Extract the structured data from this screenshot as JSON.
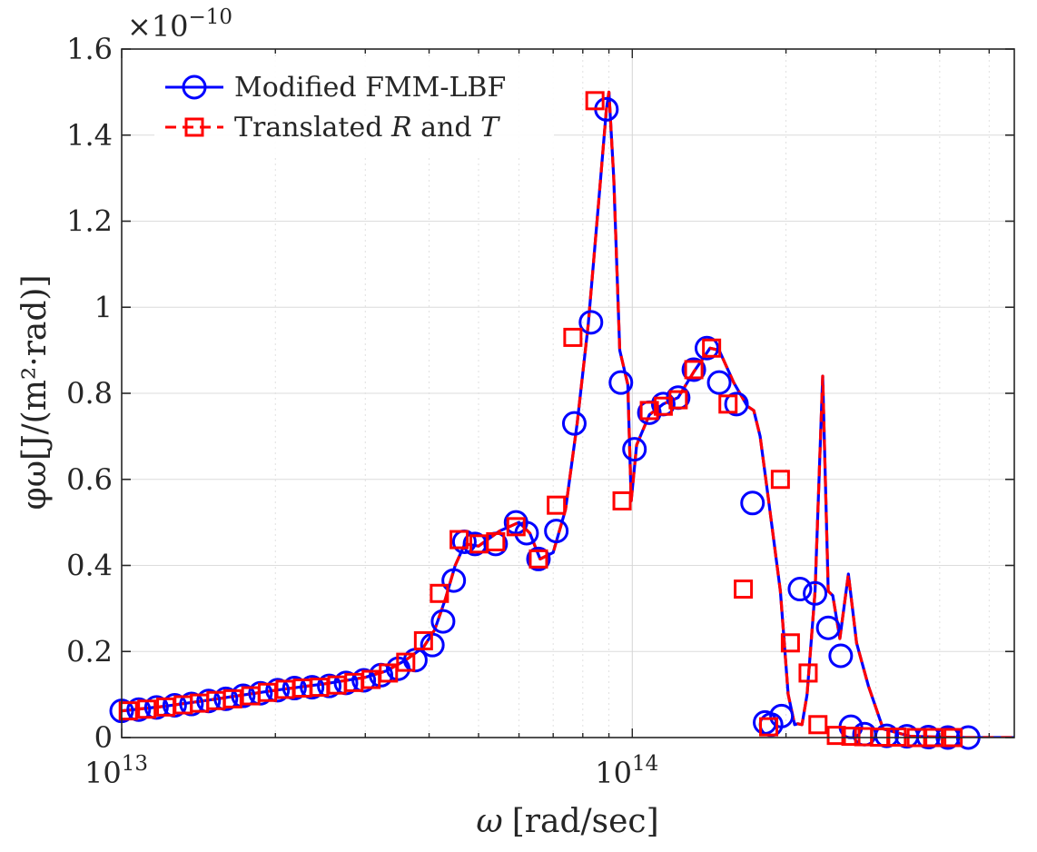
{
  "chart_data": {
    "type": "line",
    "xscale": "log",
    "xlim": [
      10000000000000.0,
      560000000000000.0
    ],
    "ylim": [
      0,
      1.6
    ],
    "y_multiplier": "×10",
    "y_multiplier_exponent": "−10",
    "xlabel_symbol": "ω",
    "xlabel_unit": "[rad/sec]",
    "ylabel": "φω[J/(m²·rad)]",
    "grid": true,
    "legend_position": "top-left",
    "x_ticks": [
      {
        "value": 10000000000000.0,
        "base": "10",
        "exp": "13"
      },
      {
        "value": 100000000000000.0,
        "base": "10",
        "exp": "14"
      }
    ],
    "y_ticks": [
      {
        "value": 0,
        "label": "0"
      },
      {
        "value": 0.2,
        "label": "0.2"
      },
      {
        "value": 0.4,
        "label": "0.4"
      },
      {
        "value": 0.6,
        "label": "0.6"
      },
      {
        "value": 0.8,
        "label": "0.8"
      },
      {
        "value": 1.0,
        "label": "1"
      },
      {
        "value": 1.2,
        "label": "1.2"
      },
      {
        "value": 1.4,
        "label": "1.4"
      },
      {
        "value": 1.6,
        "label": "1.6"
      }
    ],
    "curve": {
      "x": [
        10000000000000.0,
        12000000000000.0,
        15000000000000.0,
        20000000000000.0,
        25000000000000.0,
        30000000000000.0,
        33000000000000.0,
        36000000000000.0,
        39000000000000.0,
        41000000000000.0,
        43000000000000.0,
        45000000000000.0,
        47000000000000.0,
        50000000000000.0,
        55000000000000.0,
        60000000000000.0,
        63000000000000.0,
        66000000000000.0,
        70000000000000.0,
        74000000000000.0,
        78000000000000.0,
        82000000000000.0,
        86000000000000.0,
        89000000000000.0,
        90000000000000.0,
        92000000000000.0,
        94500000000000.0,
        98000000000000.0,
        99500000000000.0,
        102000000000000.0,
        108000000000000.0,
        115000000000000.0,
        123000000000000.0,
        132000000000000.0,
        142000000000000.0,
        148000000000000.0,
        158000000000000.0,
        168000000000000.0,
        173000000000000.0,
        178000000000000.0,
        185000000000000.0,
        195000000000000.0,
        202000000000000.0,
        208000000000000.0,
        211000000000000.0,
        215000000000000.0,
        220000000000000.0,
        228000000000000.0,
        236000000000000.0,
        242000000000000.0,
        247000000000000.0,
        255000000000000.0,
        265000000000000.0,
        275000000000000.0,
        290000000000000.0,
        310000000000000.0,
        350000000000000.0,
        400000000000000.0,
        450000000000000.0,
        520000000000000.0,
        560000000000000.0
      ],
      "y": [
        0.062,
        0.072,
        0.088,
        0.11,
        0.125,
        0.14,
        0.155,
        0.18,
        0.21,
        0.25,
        0.32,
        0.4,
        0.45,
        0.445,
        0.48,
        0.5,
        0.475,
        0.415,
        0.43,
        0.53,
        0.73,
        0.96,
        1.25,
        1.46,
        1.5,
        1.3,
        0.9,
        0.82,
        0.55,
        0.68,
        0.75,
        0.775,
        0.79,
        0.85,
        0.905,
        0.9,
        0.825,
        0.77,
        0.76,
        0.7,
        0.55,
        0.34,
        0.1,
        0.03,
        0.032,
        0.03,
        0.1,
        0.34,
        0.84,
        0.34,
        0.33,
        0.23,
        0.38,
        0.22,
        0.12,
        0.02,
        0.003,
        0.001,
        0.0,
        0.0,
        0.0
      ]
    },
    "series": [
      {
        "name": "Modified FMM-LBF",
        "color": "#0000ff",
        "marker": "circle",
        "line_style": "solid",
        "markers": {
          "x": [
            10000000000000.0,
            10800000000000.0,
            11700000000000.0,
            12700000000000.0,
            13700000000000.0,
            14800000000000.0,
            16000000000000.0,
            17300000000000.0,
            18700000000000.0,
            20200000000000.0,
            21800000000000.0,
            23600000000000.0,
            25500000000000.0,
            27500000000000.0,
            29800000000000.0,
            32200000000000.0,
            34800000000000.0,
            37600000000000.0,
            40600000000000.0,
            42600000000000.0,
            44700000000000.0,
            46900000000000.0,
            49200000000000.0,
            54000000000000.0,
            59200000000000.0,
            62100000000000.0,
            65500000000000.0,
            71000000000000.0,
            77000000000000.0,
            83000000000000.0,
            89000000000000.0,
            95000000000000.0,
            101000000000000.0,
            108000000000000.0,
            115000000000000.0,
            123000000000000.0,
            132000000000000.0,
            140000000000000.0,
            148000000000000.0,
            160000000000000.0,
            172000000000000.0,
            182000000000000.0,
            187000000000000.0,
            196000000000000.0,
            213000000000000.0,
            228000000000000.0,
            242000000000000.0,
            256000000000000.0,
            268000000000000.0,
            285000000000000.0,
            315000000000000.0,
            345000000000000.0,
            380000000000000.0,
            415000000000000.0,
            455000000000000.0
          ],
          "y": [
            0.062,
            0.065,
            0.07,
            0.075,
            0.078,
            0.085,
            0.09,
            0.097,
            0.103,
            0.11,
            0.115,
            0.117,
            0.12,
            0.127,
            0.133,
            0.145,
            0.16,
            0.18,
            0.215,
            0.27,
            0.365,
            0.455,
            0.45,
            0.45,
            0.5,
            0.475,
            0.415,
            0.48,
            0.73,
            0.965,
            1.46,
            0.825,
            0.67,
            0.755,
            0.775,
            0.79,
            0.855,
            0.905,
            0.825,
            0.775,
            0.545,
            0.035,
            0.03,
            0.05,
            0.345,
            0.335,
            0.255,
            0.19,
            0.025,
            0.008,
            0.004,
            0.003,
            0.001,
            0.0,
            0.0
          ]
        }
      },
      {
        "name": "Translated R and T",
        "color": "#ff0000",
        "marker": "square",
        "line_style": "dashed",
        "markers": {
          "x": [
            10300000000000.0,
            11200000000000.0,
            12200000000000.0,
            13200000000000.0,
            14200000000000.0,
            15300000000000.0,
            16500000000000.0,
            17900000000000.0,
            19300000000000.0,
            20900000000000.0,
            22600000000000.0,
            24400000000000.0,
            26400000000000.0,
            28500000000000.0,
            30800000000000.0,
            33300000000000.0,
            36000000000000.0,
            39000000000000.0,
            41900000000000.0,
            45800000000000.0,
            50100000000000.0,
            54000000000000.0,
            59200000000000.0,
            65500000000000.0,
            71000000000000.0,
            76500000000000.0,
            84500000000000.0,
            95500000000000.0,
            108000000000000.0,
            115000000000000.0,
            123000000000000.0,
            132000000000000.0,
            143000000000000.0,
            154000000000000.0,
            165000000000000.0,
            185000000000000.0,
            195000000000000.0,
            204000000000000.0,
            221000000000000.0,
            231000000000000.0,
            251000000000000.0,
            268000000000000.0,
            284000000000000.0,
            305000000000000.0,
            330000000000000.0,
            360000000000000.0,
            390000000000000.0,
            425000000000000.0
          ],
          "y": [
            0.062,
            0.066,
            0.071,
            0.076,
            0.08,
            0.086,
            0.09,
            0.097,
            0.105,
            0.112,
            0.115,
            0.117,
            0.122,
            0.128,
            0.135,
            0.15,
            0.175,
            0.225,
            0.335,
            0.46,
            0.45,
            0.455,
            0.49,
            0.415,
            0.54,
            0.93,
            1.48,
            0.55,
            0.76,
            0.77,
            0.785,
            0.855,
            0.905,
            0.775,
            0.345,
            0.025,
            0.6,
            0.22,
            0.15,
            0.03,
            0.005,
            0.003,
            0.002,
            0.001,
            0.001,
            0.0,
            0.0,
            0.0
          ]
        }
      }
    ],
    "legend": [
      {
        "label": "Modified FMM-LBF"
      },
      {
        "label_prefix": "Translated ",
        "label_r": "R",
        "label_mid": " and ",
        "label_t": "T"
      }
    ]
  }
}
